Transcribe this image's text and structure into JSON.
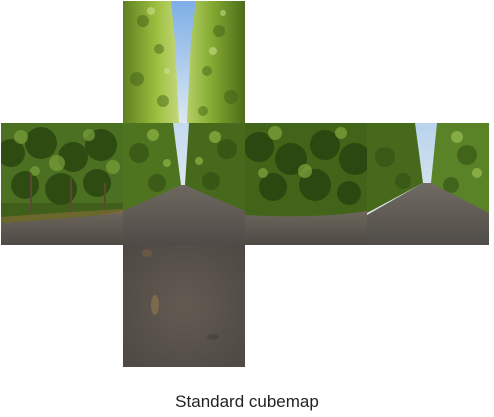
{
  "caption": "Standard cubemap",
  "faces": [
    {
      "id": "top",
      "content": "sky between hedge rows"
    },
    {
      "id": "left",
      "content": "hedge with path"
    },
    {
      "id": "front",
      "content": "avenue vanishing point"
    },
    {
      "id": "right",
      "content": "hedge with path"
    },
    {
      "id": "back",
      "content": "avenue vanishing point"
    },
    {
      "id": "bottom",
      "content": "gravel path"
    }
  ],
  "colors": {
    "sky": "#a9c9ea",
    "foliage_light": "#8fb03a",
    "foliage_dark": "#2f4d14",
    "path": "#5a544d"
  }
}
